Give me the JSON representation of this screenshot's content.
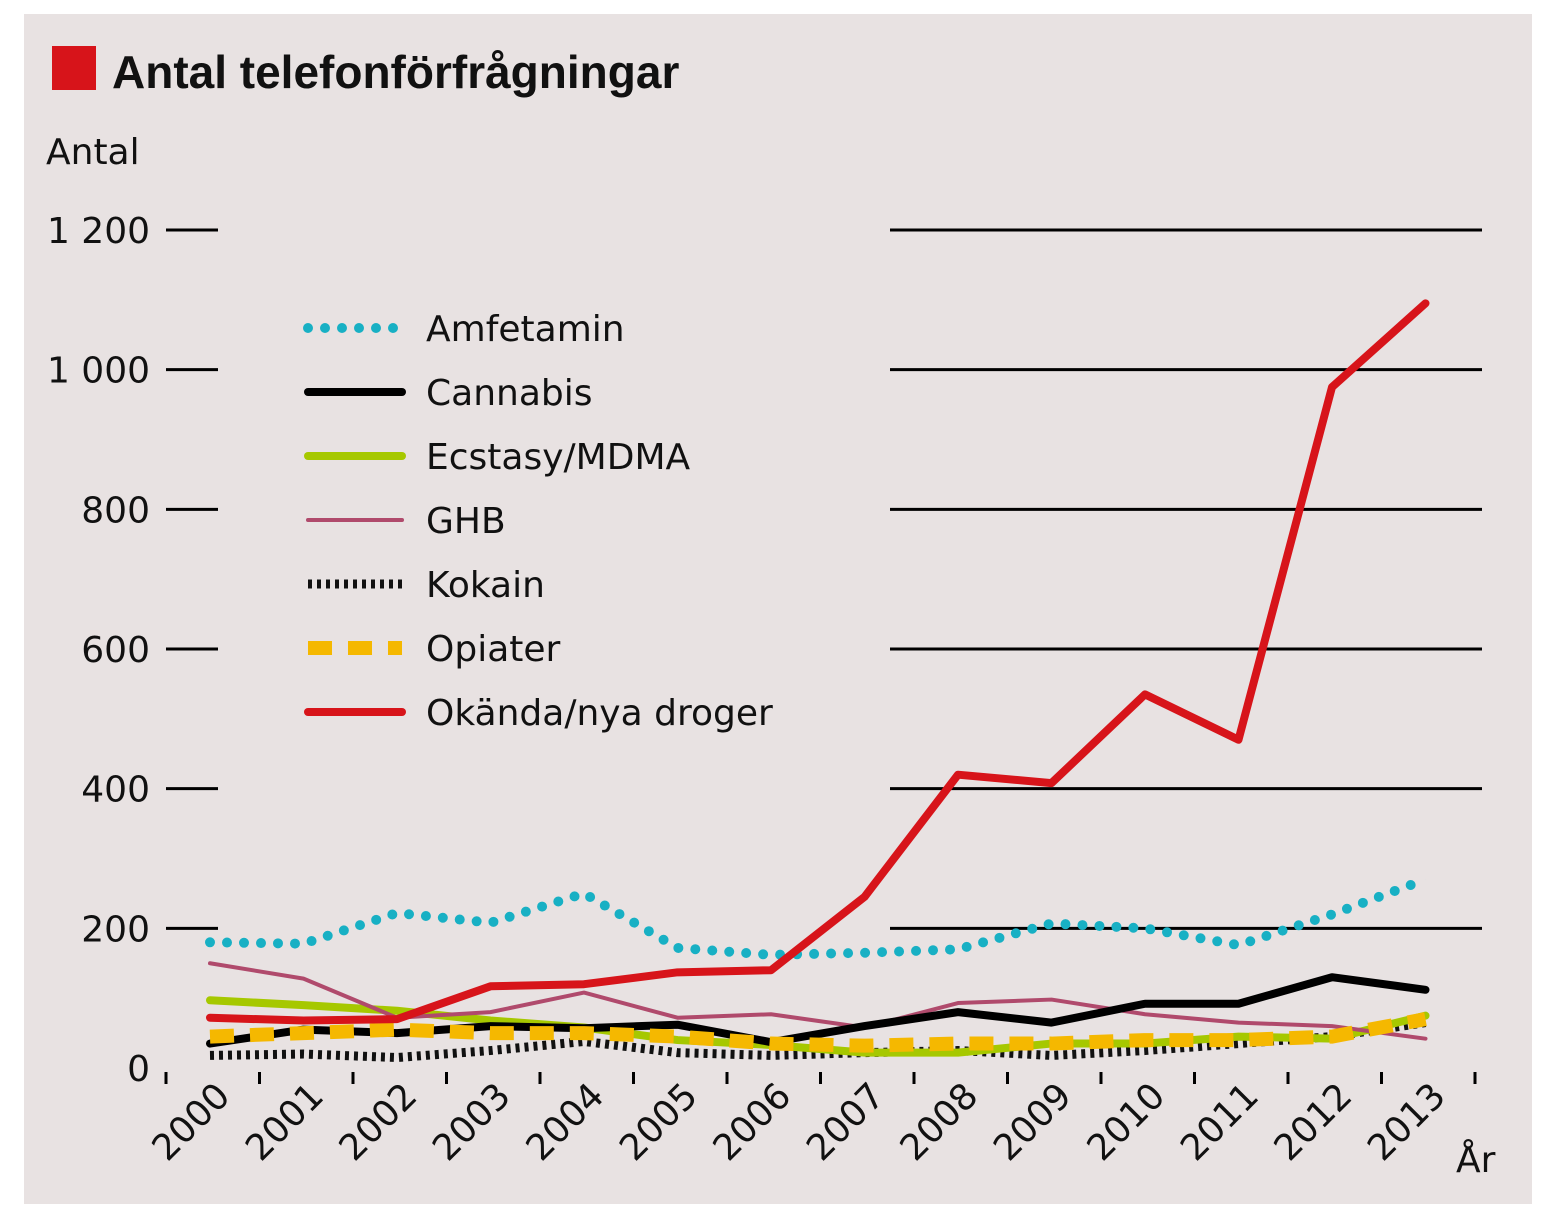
{
  "chart_data": {
    "type": "line",
    "title": "Antal telefonförfrågningar",
    "ylabel": "Antal",
    "xlabel": "År",
    "ylim": [
      0,
      1200
    ],
    "y_ticks": [
      0,
      200,
      400,
      600,
      800,
      1000,
      1200
    ],
    "y_tick_labels": [
      "0",
      "200",
      "400",
      "600",
      "800",
      "1 000",
      "1 200"
    ],
    "categories": [
      "2000",
      "2001",
      "2002",
      "2003",
      "2004",
      "2005",
      "2006",
      "2007",
      "2008",
      "2009",
      "2010",
      "2011",
      "2012",
      "2013"
    ],
    "legend_position": "top-left",
    "grid": "horizontal (right part)",
    "title_marker_color": "#d7141a",
    "series": [
      {
        "name": "Amfetamin",
        "color": "#18b0c4",
        "style": "dotted",
        "values": [
          180,
          178,
          222,
          208,
          250,
          172,
          162,
          165,
          170,
          207,
          200,
          176,
          220,
          270
        ]
      },
      {
        "name": "Cannabis",
        "color": "#000000",
        "style": "thick",
        "values": [
          35,
          55,
          50,
          60,
          57,
          62,
          37,
          60,
          80,
          65,
          92,
          92,
          130,
          112
        ]
      },
      {
        "name": "Ecstasy/MDMA",
        "color": "#a6c800",
        "style": "thick",
        "values": [
          97,
          90,
          82,
          68,
          58,
          40,
          33,
          22,
          22,
          35,
          35,
          45,
          42,
          75
        ]
      },
      {
        "name": "GHB",
        "color": "#b04a6c",
        "style": "medium",
        "values": [
          150,
          128,
          72,
          80,
          108,
          72,
          77,
          58,
          93,
          98,
          77,
          65,
          60,
          42
        ]
      },
      {
        "name": "Kokain",
        "color": "#111111",
        "style": "hatched",
        "values": [
          18,
          20,
          15,
          25,
          38,
          22,
          18,
          22,
          25,
          18,
          25,
          35,
          45,
          65
        ]
      },
      {
        "name": "Opiater",
        "color": "#f5b800",
        "style": "dashed",
        "values": [
          45,
          50,
          55,
          50,
          50,
          45,
          35,
          32,
          35,
          35,
          40,
          40,
          45,
          70
        ]
      },
      {
        "name": "Okända/nya droger",
        "color": "#d7141a",
        "style": "thick",
        "values": [
          72,
          68,
          70,
          117,
          120,
          137,
          140,
          245,
          420,
          408,
          535,
          470,
          975,
          1095
        ]
      }
    ]
  }
}
